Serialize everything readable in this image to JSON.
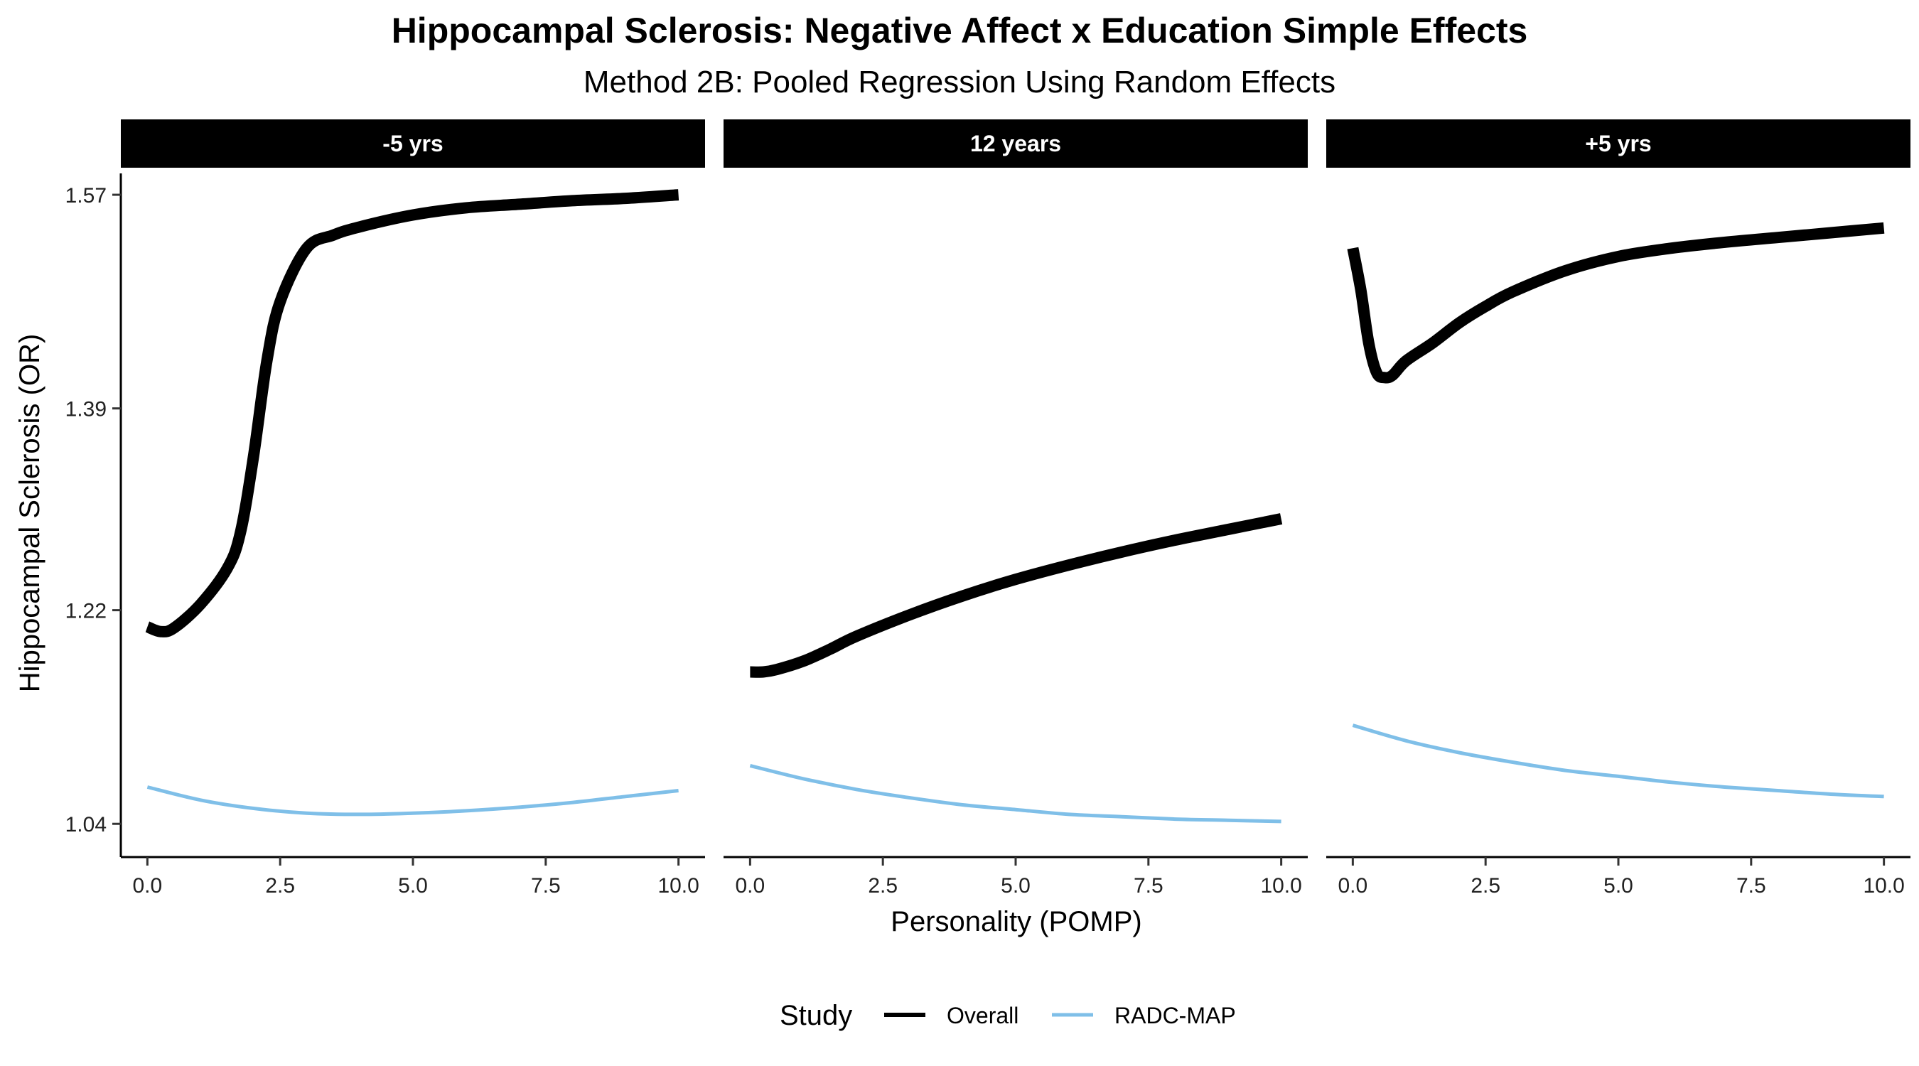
{
  "title": "Hippocampal Sclerosis: Negative Affect x Education Simple Effects",
  "subtitle": "Method 2B: Pooled Regression Using Random Effects",
  "chart_data": {
    "type": "line",
    "xlabel": "Personality (POMP)",
    "ylabel": "Hippocampal Sclerosis (OR)",
    "xlim": [
      -0.5,
      10.5
    ],
    "ylim": [
      1.012,
      1.588
    ],
    "x_ticks": [
      0,
      2.5,
      5,
      7.5,
      10
    ],
    "x_tick_labels": [
      "0.0",
      "2.5",
      "5.0",
      "7.5",
      "10.0"
    ],
    "y_ticks": [
      1.04,
      1.22,
      1.39,
      1.57
    ],
    "y_tick_labels": [
      "1.04",
      "1.22",
      "1.39",
      "1.57"
    ],
    "grid": false,
    "legend": {
      "title": "Study",
      "position": "bottom",
      "entries": [
        {
          "name": "Overall",
          "color": "#000000"
        },
        {
          "name": "RADC-MAP",
          "color": "#7fbfe8"
        }
      ]
    },
    "panels": [
      {
        "label": "-5 yrs",
        "series": [
          {
            "name": "Overall",
            "color": "#000000",
            "x": [
              0,
              0.25,
              0.5,
              1.0,
              1.5,
              1.75,
              2.0,
              2.25,
              2.5,
              3.0,
              3.5,
              4.0,
              5.0,
              6.0,
              7.0,
              8.0,
              9.0,
              10.0
            ],
            "y": [
              1.206,
              1.202,
              1.205,
              1.225,
              1.255,
              1.285,
              1.35,
              1.43,
              1.48,
              1.525,
              1.536,
              1.543,
              1.553,
              1.559,
              1.562,
              1.565,
              1.567,
              1.57
            ]
          },
          {
            "name": "RADC-MAP",
            "color": "#7fbfe8",
            "x": [
              0,
              1,
              2,
              3,
              4,
              5,
              6,
              7,
              8,
              9,
              10
            ],
            "y": [
              1.071,
              1.06,
              1.053,
              1.049,
              1.048,
              1.049,
              1.051,
              1.054,
              1.058,
              1.063,
              1.068
            ]
          }
        ]
      },
      {
        "label": "12 years",
        "series": [
          {
            "name": "Overall",
            "color": "#000000",
            "x": [
              0,
              0.25,
              0.5,
              1.0,
              1.5,
              2.0,
              3.0,
              4.0,
              5.0,
              6.0,
              7.0,
              8.0,
              9.0,
              10.0
            ],
            "y": [
              1.168,
              1.168,
              1.17,
              1.177,
              1.187,
              1.198,
              1.216,
              1.232,
              1.246,
              1.258,
              1.269,
              1.279,
              1.288,
              1.297
            ]
          },
          {
            "name": "RADC-MAP",
            "color": "#7fbfe8",
            "x": [
              0,
              1,
              2,
              3,
              4,
              5,
              6,
              7,
              8,
              9,
              10
            ],
            "y": [
              1.089,
              1.078,
              1.069,
              1.062,
              1.056,
              1.052,
              1.048,
              1.046,
              1.044,
              1.043,
              1.042
            ]
          }
        ]
      },
      {
        "label": "+5 yrs",
        "series": [
          {
            "name": "Overall",
            "color": "#000000",
            "x": [
              0,
              0.15,
              0.3,
              0.45,
              0.6,
              0.75,
              1.0,
              1.5,
              2.0,
              2.5,
              3.0,
              4.0,
              5.0,
              6.0,
              7.0,
              8.0,
              9.0,
              10.0
            ],
            "y": [
              1.525,
              1.49,
              1.445,
              1.42,
              1.416,
              1.418,
              1.43,
              1.445,
              1.462,
              1.476,
              1.488,
              1.506,
              1.518,
              1.525,
              1.53,
              1.534,
              1.538,
              1.542
            ]
          },
          {
            "name": "RADC-MAP",
            "color": "#7fbfe8",
            "x": [
              0,
              1,
              2,
              3,
              4,
              5,
              6,
              7,
              8,
              9,
              10
            ],
            "y": [
              1.123,
              1.11,
              1.1,
              1.092,
              1.085,
              1.08,
              1.075,
              1.071,
              1.068,
              1.065,
              1.063
            ]
          }
        ]
      }
    ]
  }
}
